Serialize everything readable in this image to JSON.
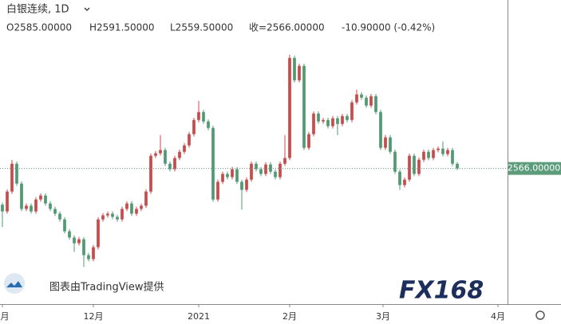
{
  "chart_data": {
    "type": "candlestick",
    "title": "白银连续, 1D",
    "ohlc_labels": [
      "O2585.00000",
      "H2591.50000",
      "L2559.50000",
      "收=2566.00000",
      "-10.90000 (-0.42%)"
    ],
    "opens": [
      2420,
      2393,
      2473,
      2585,
      2505,
      2403,
      2416,
      2393,
      2441,
      2457,
      2425,
      2403,
      2384,
      2361,
      2313,
      2288,
      2265,
      2281,
      2217,
      2201,
      2249,
      2361,
      2377,
      2384,
      2371,
      2361,
      2403,
      2425,
      2384,
      2403,
      2416,
      2473,
      2617,
      2627,
      2640,
      2585,
      2563,
      2608,
      2633,
      2659,
      2704,
      2761,
      2793,
      2755,
      2729,
      2441,
      2512,
      2544,
      2531,
      2563,
      2512,
      2480,
      2521,
      2585,
      2563,
      2544,
      2582,
      2553,
      2531,
      2585,
      2608,
      3011,
      2921,
      2979,
      2649,
      2704,
      2787,
      2755,
      2761,
      2736,
      2768,
      2745,
      2777,
      2761,
      2832,
      2864,
      2851,
      2819,
      2857,
      2793,
      2649,
      2691,
      2633,
      2553,
      2499,
      2521,
      2617,
      2544,
      2601,
      2633,
      2608,
      2640,
      2646,
      2624,
      2640,
      2585
    ],
    "highs": [
      2429,
      2482,
      2600,
      2594,
      2514,
      2425,
      2425,
      2450,
      2466,
      2466,
      2434,
      2412,
      2393,
      2370,
      2322,
      2297,
      2290,
      2290,
      2226,
      2258,
      2370,
      2386,
      2393,
      2393,
      2380,
      2412,
      2434,
      2434,
      2412,
      2425,
      2482,
      2626,
      2636,
      2700,
      2649,
      2594,
      2617,
      2642,
      2668,
      2713,
      2770,
      2838,
      2802,
      2764,
      2738,
      2521,
      2553,
      2553,
      2572,
      2572,
      2521,
      2530,
      2594,
      2594,
      2572,
      2591,
      2591,
      2562,
      2594,
      2700,
      3024,
      3020,
      2988,
      2988,
      2713,
      2796,
      2796,
      2770,
      2770,
      2777,
      2777,
      2786,
      2786,
      2841,
      2883,
      2873,
      2860,
      2866,
      2866,
      2802,
      2700,
      2700,
      2642,
      2562,
      2530,
      2626,
      2626,
      2610,
      2642,
      2642,
      2649,
      2655,
      2675,
      2649,
      2649,
      2591.5
    ],
    "lows": [
      2330,
      2384,
      2464,
      2496,
      2394,
      2394,
      2384,
      2384,
      2432,
      2416,
      2394,
      2375,
      2352,
      2304,
      2279,
      2230,
      2256,
      2170,
      2192,
      2192,
      2240,
      2352,
      2368,
      2362,
      2352,
      2352,
      2394,
      2375,
      2375,
      2394,
      2407,
      2464,
      2608,
      2618,
      2576,
      2554,
      2554,
      2599,
      2624,
      2650,
      2695,
      2752,
      2746,
      2720,
      2432,
      2432,
      2503,
      2522,
      2522,
      2503,
      2400,
      2471,
      2512,
      2554,
      2535,
      2535,
      2544,
      2522,
      2522,
      2576,
      2599,
      2912,
      2912,
      2640,
      2640,
      2695,
      2746,
      2746,
      2727,
      2727,
      2700,
      2736,
      2752,
      2752,
      2823,
      2842,
      2810,
      2810,
      2784,
      2640,
      2640,
      2624,
      2544,
      2480,
      2490,
      2512,
      2535,
      2535,
      2592,
      2599,
      2599,
      2631,
      2615,
      2615,
      2576,
      2559.5
    ],
    "closes": [
      2393,
      2473,
      2585,
      2505,
      2403,
      2416,
      2393,
      2441,
      2457,
      2425,
      2403,
      2384,
      2361,
      2313,
      2288,
      2265,
      2281,
      2217,
      2201,
      2249,
      2361,
      2377,
      2384,
      2371,
      2361,
      2403,
      2425,
      2384,
      2403,
      2416,
      2473,
      2617,
      2627,
      2640,
      2585,
      2563,
      2608,
      2633,
      2659,
      2704,
      2761,
      2793,
      2755,
      2729,
      2441,
      2512,
      2544,
      2531,
      2563,
      2512,
      2480,
      2521,
      2585,
      2563,
      2544,
      2582,
      2553,
      2531,
      2585,
      2608,
      3011,
      2921,
      2979,
      2649,
      2704,
      2787,
      2755,
      2761,
      2736,
      2768,
      2745,
      2777,
      2761,
      2832,
      2864,
      2851,
      2819,
      2857,
      2793,
      2649,
      2691,
      2633,
      2553,
      2499,
      2521,
      2617,
      2544,
      2601,
      2633,
      2608,
      2640,
      2646,
      2624,
      2640,
      2585,
      2566
    ],
    "up_color": "#c94a4a",
    "down_color": "#4f9a72",
    "ylim": [
      2020,
      3180
    ],
    "xlim": [
      -0.5,
      105.5
    ],
    "xticks": [
      {
        "value": 0,
        "label": "月"
      },
      {
        "value": 19,
        "label": "12月"
      },
      {
        "value": 41,
        "label": "2021"
      },
      {
        "value": 60,
        "label": "2月"
      },
      {
        "value": 79.5,
        "label": "3月"
      },
      {
        "value": 103.5,
        "label": "4月"
      }
    ],
    "last_price": {
      "value": 2566,
      "label": "2566.00000"
    },
    "last_price_color": "#5b9c7a",
    "attribution": "图表由TradingView提供",
    "logo": "FX168"
  }
}
